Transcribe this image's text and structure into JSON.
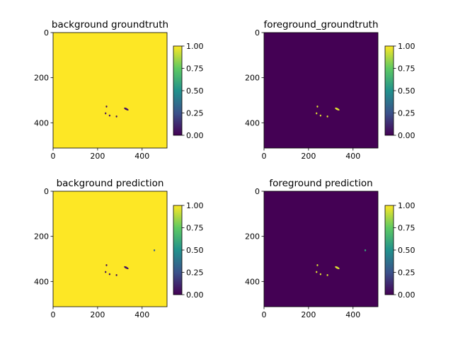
{
  "figure": {
    "background": "#ffffff"
  },
  "colormap": {
    "name": "viridis",
    "stops": [
      {
        "v": 0.0,
        "color": "#440154"
      },
      {
        "v": 0.25,
        "color": "#3b528b"
      },
      {
        "v": 0.5,
        "color": "#21918c"
      },
      {
        "v": 0.75,
        "color": "#5ec962"
      },
      {
        "v": 1.0,
        "color": "#fde725"
      }
    ]
  },
  "chart_data": [
    {
      "type": "heatmap",
      "title": "background groundtruth",
      "xlim": [
        0,
        512
      ],
      "ylim": [
        512,
        0
      ],
      "x_ticks": [
        0,
        200,
        400
      ],
      "y_ticks": [
        0,
        200,
        400
      ],
      "x_tick_labels": [
        "0",
        "200",
        "400"
      ],
      "y_tick_labels": [
        "0",
        "200",
        "400"
      ],
      "background_value": 1.0,
      "blobs": [
        {
          "x": 240,
          "y": 328,
          "value": 0.05
        },
        {
          "x": 236,
          "y": 358,
          "value": 0.05
        },
        {
          "x": 254,
          "y": 368,
          "value": 0.05
        },
        {
          "x": 285,
          "y": 372,
          "value": 0.05
        },
        {
          "x": 329,
          "y": 339,
          "value": 0.05
        }
      ],
      "colorbar": {
        "min": 0.0,
        "max": 1.0,
        "ticks": [
          "0.00",
          "0.25",
          "0.50",
          "0.75",
          "1.00"
        ]
      }
    },
    {
      "type": "heatmap",
      "title": "foreground_groundtruth",
      "xlim": [
        0,
        512
      ],
      "ylim": [
        512,
        0
      ],
      "x_ticks": [
        0,
        200,
        400
      ],
      "y_ticks": [
        0,
        200,
        400
      ],
      "x_tick_labels": [
        "0",
        "200",
        "400"
      ],
      "y_tick_labels": [
        "0",
        "200",
        "400"
      ],
      "background_value": 0.0,
      "blobs": [
        {
          "x": 240,
          "y": 328,
          "value": 0.95
        },
        {
          "x": 236,
          "y": 358,
          "value": 0.95
        },
        {
          "x": 254,
          "y": 368,
          "value": 0.95
        },
        {
          "x": 285,
          "y": 372,
          "value": 0.95
        },
        {
          "x": 329,
          "y": 339,
          "value": 0.95
        }
      ],
      "colorbar": {
        "min": 0.0,
        "max": 1.0,
        "ticks": [
          "0.00",
          "0.25",
          "0.50",
          "0.75",
          "1.00"
        ]
      }
    },
    {
      "type": "heatmap",
      "title": "background prediction",
      "xlim": [
        0,
        512
      ],
      "ylim": [
        512,
        0
      ],
      "x_ticks": [
        0,
        200,
        400
      ],
      "y_ticks": [
        0,
        200,
        400
      ],
      "x_tick_labels": [
        "0",
        "200",
        "400"
      ],
      "y_tick_labels": [
        "0",
        "200",
        "400"
      ],
      "background_value": 1.0,
      "blobs": [
        {
          "x": 240,
          "y": 328,
          "value": 0.05
        },
        {
          "x": 236,
          "y": 358,
          "value": 0.05
        },
        {
          "x": 254,
          "y": 368,
          "value": 0.05
        },
        {
          "x": 285,
          "y": 372,
          "value": 0.05
        },
        {
          "x": 329,
          "y": 339,
          "value": 0.05
        },
        {
          "x": 455,
          "y": 262,
          "value": 0.3
        }
      ],
      "colorbar": {
        "min": 0.0,
        "max": 1.0,
        "ticks": [
          "0.00",
          "0.25",
          "0.50",
          "0.75",
          "1.00"
        ]
      }
    },
    {
      "type": "heatmap",
      "title": "foreground prediction",
      "xlim": [
        0,
        512
      ],
      "ylim": [
        512,
        0
      ],
      "x_ticks": [
        0,
        200,
        400
      ],
      "y_ticks": [
        0,
        200,
        400
      ],
      "x_tick_labels": [
        "0",
        "200",
        "400"
      ],
      "y_tick_labels": [
        "0",
        "200",
        "400"
      ],
      "background_value": 0.0,
      "blobs": [
        {
          "x": 240,
          "y": 328,
          "value": 0.95
        },
        {
          "x": 236,
          "y": 358,
          "value": 0.95
        },
        {
          "x": 254,
          "y": 368,
          "value": 0.95
        },
        {
          "x": 285,
          "y": 372,
          "value": 0.95
        },
        {
          "x": 329,
          "y": 339,
          "value": 0.95
        },
        {
          "x": 455,
          "y": 262,
          "value": 0.6
        }
      ],
      "colorbar": {
        "min": 0.0,
        "max": 1.0,
        "ticks": [
          "0.00",
          "0.25",
          "0.50",
          "0.75",
          "1.00"
        ]
      }
    }
  ]
}
